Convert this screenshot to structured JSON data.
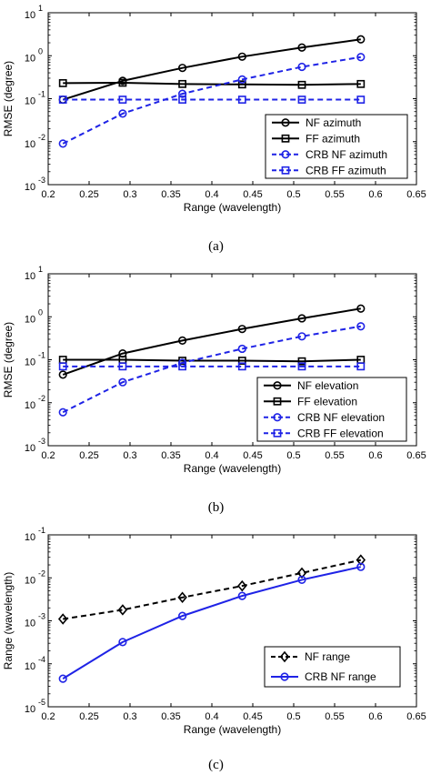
{
  "chart_data": [
    {
      "type": "line",
      "caption": "(a)",
      "xlabel": "Range (wavelength)",
      "ylabel": "RMSE (degree)",
      "xlim": [
        0.2,
        0.65
      ],
      "ylim": [
        0.001,
        10
      ],
      "yscale": "log",
      "x_ticks": [
        "0.2",
        "0.25",
        "0.3",
        "0.35",
        "0.4",
        "0.45",
        "0.5",
        "0.55",
        "0.6",
        "0.65"
      ],
      "y_ticks": [
        {
          "base": "10",
          "exp": "1",
          "value": 10
        },
        {
          "base": "10",
          "exp": "0",
          "value": 1
        },
        {
          "base": "10",
          "exp": "-1",
          "value": 0.1
        },
        {
          "base": "10",
          "exp": "-2",
          "value": 0.01
        },
        {
          "base": "10",
          "exp": "-3",
          "value": 0.001
        }
      ],
      "legend_position": "bottom-right",
      "series": [
        {
          "name": "NF azimuth",
          "color": "#000000",
          "dash": "solid",
          "marker": "circle",
          "x": [
            0.218,
            0.291,
            0.364,
            0.437,
            0.51,
            0.582
          ],
          "y": [
            0.095,
            0.26,
            0.52,
            0.95,
            1.55,
            2.4
          ]
        },
        {
          "name": "FF azimuth",
          "color": "#000000",
          "dash": "solid",
          "marker": "square",
          "x": [
            0.218,
            0.291,
            0.364,
            0.437,
            0.51,
            0.582
          ],
          "y": [
            0.23,
            0.235,
            0.22,
            0.215,
            0.21,
            0.22
          ]
        },
        {
          "name": "CRB NF azimuth",
          "color": "#1f23e6",
          "dash": "dashed",
          "marker": "circle",
          "x": [
            0.218,
            0.291,
            0.364,
            0.437,
            0.51,
            0.582
          ],
          "y": [
            0.009,
            0.045,
            0.13,
            0.28,
            0.55,
            0.93
          ]
        },
        {
          "name": "CRB FF azimuth",
          "color": "#1f23e6",
          "dash": "dashed",
          "marker": "square",
          "x": [
            0.218,
            0.291,
            0.364,
            0.437,
            0.51,
            0.582
          ],
          "y": [
            0.095,
            0.095,
            0.095,
            0.095,
            0.095,
            0.095
          ]
        }
      ]
    },
    {
      "type": "line",
      "caption": "(b)",
      "xlabel": "Range (wavelength)",
      "ylabel": "RMSE (degree)",
      "xlim": [
        0.2,
        0.65
      ],
      "ylim": [
        0.001,
        10
      ],
      "yscale": "log",
      "x_ticks": [
        "0.2",
        "0.25",
        "0.3",
        "0.35",
        "0.4",
        "0.45",
        "0.5",
        "0.55",
        "0.6",
        "0.65"
      ],
      "y_ticks": [
        {
          "base": "10",
          "exp": "1",
          "value": 10
        },
        {
          "base": "10",
          "exp": "0",
          "value": 1
        },
        {
          "base": "10",
          "exp": "-1",
          "value": 0.1
        },
        {
          "base": "10",
          "exp": "-2",
          "value": 0.01
        },
        {
          "base": "10",
          "exp": "-3",
          "value": 0.001
        }
      ],
      "legend_position": "bottom-right",
      "series": [
        {
          "name": "NF elevation",
          "color": "#000000",
          "dash": "solid",
          "marker": "circle",
          "x": [
            0.218,
            0.291,
            0.364,
            0.437,
            0.51,
            0.582
          ],
          "y": [
            0.045,
            0.14,
            0.28,
            0.52,
            0.92,
            1.55
          ]
        },
        {
          "name": "FF elevation",
          "color": "#000000",
          "dash": "solid",
          "marker": "square",
          "x": [
            0.218,
            0.291,
            0.364,
            0.437,
            0.51,
            0.582
          ],
          "y": [
            0.1,
            0.1,
            0.095,
            0.095,
            0.092,
            0.1
          ]
        },
        {
          "name": "CRB NF elevation",
          "color": "#1f23e6",
          "dash": "dashed",
          "marker": "circle",
          "x": [
            0.218,
            0.291,
            0.364,
            0.437,
            0.51,
            0.582
          ],
          "y": [
            0.006,
            0.03,
            0.085,
            0.18,
            0.35,
            0.6
          ]
        },
        {
          "name": "CRB FF elevation",
          "color": "#1f23e6",
          "dash": "dashed",
          "marker": "square",
          "x": [
            0.218,
            0.291,
            0.364,
            0.437,
            0.51,
            0.582
          ],
          "y": [
            0.07,
            0.07,
            0.07,
            0.07,
            0.07,
            0.07
          ]
        }
      ]
    },
    {
      "type": "line",
      "caption": "(c)",
      "xlabel": "Range (wavelength)",
      "ylabel": "Range (wavelength)",
      "xlim": [
        0.2,
        0.65
      ],
      "ylim": [
        1e-05,
        0.1
      ],
      "yscale": "log",
      "x_ticks": [
        "0.2",
        "0.25",
        "0.3",
        "0.35",
        "0.4",
        "0.45",
        "0.5",
        "0.55",
        "0.6",
        "0.65"
      ],
      "y_ticks": [
        {
          "base": "10",
          "exp": "-1",
          "value": 0.1
        },
        {
          "base": "10",
          "exp": "-2",
          "value": 0.01
        },
        {
          "base": "10",
          "exp": "-3",
          "value": 0.001
        },
        {
          "base": "10",
          "exp": "-4",
          "value": 0.0001
        },
        {
          "base": "10",
          "exp": "-5",
          "value": 1e-05
        }
      ],
      "legend_position": "bottom-right",
      "series": [
        {
          "name": "NF range",
          "color": "#000000",
          "dash": "dashed",
          "marker": "diamond",
          "x": [
            0.218,
            0.291,
            0.364,
            0.437,
            0.51,
            0.582
          ],
          "y": [
            0.0011,
            0.0018,
            0.0035,
            0.0065,
            0.013,
            0.026
          ]
        },
        {
          "name": "CRB NF range",
          "color": "#1f23e6",
          "dash": "solid",
          "marker": "circle",
          "x": [
            0.218,
            0.291,
            0.364,
            0.437,
            0.51,
            0.582
          ],
          "y": [
            4.5e-05,
            0.00032,
            0.0013,
            0.0038,
            0.009,
            0.018
          ]
        }
      ]
    }
  ]
}
